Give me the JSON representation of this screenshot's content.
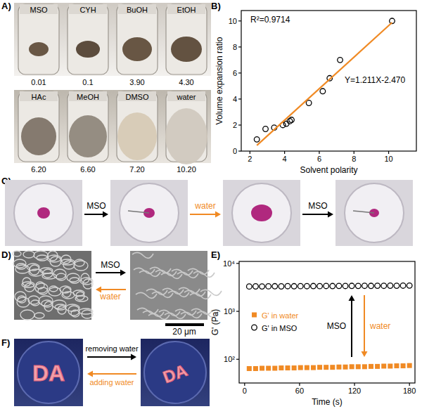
{
  "panels": {
    "A": {
      "label": "A)",
      "tubes": [
        {
          "solvent": "MSO",
          "ratio": "0.01"
        },
        {
          "solvent": "CYH",
          "ratio": "0.1"
        },
        {
          "solvent": "BuOH",
          "ratio": "3.90"
        },
        {
          "solvent": "EtOH",
          "ratio": "4.30"
        },
        {
          "solvent": "HAc",
          "ratio": "6.20"
        },
        {
          "solvent": "MeOH",
          "ratio": "6.60"
        },
        {
          "solvent": "DMSO",
          "ratio": "7.20"
        },
        {
          "solvent": "water",
          "ratio": "10.20"
        }
      ]
    },
    "C": {
      "label": "C)",
      "arrows": [
        {
          "text": "MSO",
          "color": "#000000"
        },
        {
          "text": "water",
          "color": "#f08a24"
        },
        {
          "text": "MSO",
          "color": "#000000"
        }
      ]
    },
    "D": {
      "label": "D)",
      "arrows": [
        {
          "text": "MSO",
          "color": "#000000"
        },
        {
          "text": "water",
          "color": "#f08a24"
        }
      ],
      "scale_bar": "20 μm"
    },
    "F": {
      "label": "F)",
      "photo_text": "DA",
      "arrows": [
        {
          "text": "removing water",
          "color": "#000000"
        },
        {
          "text": "adding water",
          "color": "#f08a24"
        }
      ]
    }
  },
  "chart_data": [
    {
      "type": "scatter",
      "title": "B)",
      "xlabel": "Solvent polarity",
      "ylabel": "Volume expansion ratio",
      "annotations": [
        "R²=0.9714",
        "Y=1.211X-2.470"
      ],
      "xlim": [
        1.5,
        11.6
      ],
      "ylim": [
        0,
        10.8
      ],
      "xticks": [
        2,
        4,
        6,
        8,
        10
      ],
      "yticks": [
        0,
        2,
        4,
        6,
        8,
        10
      ],
      "series": [
        {
          "type": "scatter",
          "marker": "circle",
          "color": "#000000",
          "x": [
            2.4,
            2.9,
            3.4,
            3.9,
            4.1,
            4.3,
            4.4,
            5.4,
            6.2,
            6.6,
            7.2,
            10.2
          ],
          "values": [
            0.9,
            1.7,
            1.8,
            2.0,
            2.1,
            2.3,
            2.4,
            3.7,
            4.6,
            5.6,
            7.0,
            10.0
          ]
        },
        {
          "type": "line",
          "color": "#f08a24",
          "x": [
            2.4,
            10.2
          ],
          "values": [
            0.44,
            9.88
          ]
        }
      ]
    },
    {
      "type": "scatter",
      "title": "E)",
      "xlabel": "Time (s)",
      "ylabel": "G' (Pa)",
      "log": "y",
      "legend": "center left",
      "annotations": [
        {
          "text": "MSO",
          "color": "#000000"
        },
        {
          "text": "water",
          "color": "#f08a24"
        }
      ],
      "xlim": [
        -6,
        186
      ],
      "ylim": [
        32,
        11000
      ],
      "xticks": [
        0,
        60,
        120,
        180
      ],
      "yticks": [
        {
          "value": 100,
          "label": "10²"
        },
        {
          "value": 1000,
          "label": "10³"
        },
        {
          "value": 10000,
          "label": "10⁴"
        }
      ],
      "x": [
        5,
        12,
        19,
        26,
        33,
        40,
        47,
        54,
        61,
        68,
        75,
        82,
        89,
        96,
        103,
        110,
        117,
        124,
        131,
        138,
        145,
        152,
        159,
        166,
        173,
        180
      ],
      "series": [
        {
          "name": "G' in water",
          "color": "#f08a24",
          "marker": "square",
          "values": [
            64,
            64,
            65,
            65,
            65,
            66,
            66,
            66,
            67,
            67,
            67,
            68,
            68,
            68,
            69,
            69,
            70,
            70,
            70,
            71,
            71,
            72,
            72,
            73,
            73,
            74
          ]
        },
        {
          "name": "G' in MSO",
          "color": "#000000",
          "marker": "circle",
          "values": [
            3300,
            3320,
            3310,
            3330,
            3340,
            3320,
            3350,
            3340,
            3360,
            3350,
            3370,
            3360,
            3380,
            3370,
            3390,
            3380,
            3400,
            3390,
            3410,
            3400,
            3420,
            3410,
            3430,
            3420,
            3440,
            3450
          ]
        }
      ]
    }
  ]
}
